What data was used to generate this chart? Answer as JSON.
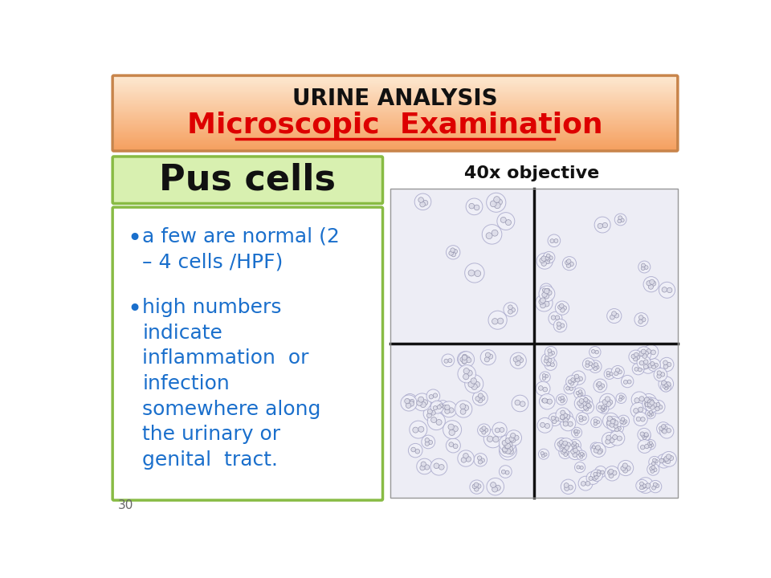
{
  "title_line1": "URINE ANALYSIS",
  "title_line2": "Microscopic  Examination",
  "title_border_color": "#c8844a",
  "subtitle": "Pus cells",
  "subtitle_bg": "#d8f0b0",
  "subtitle_border": "#88bb44",
  "bullet_color": "#1a6fcc",
  "bullet1": "a few are normal (2\n– 4 cells /HPF)",
  "bullet2": "high numbers\nindicate\ninflammation  or\ninfection\nsomewhere along\nthe urinary or\ngenital  tract.",
  "text_box_border": "#88bb44",
  "obj_label": "40x objective",
  "page_num": "30",
  "bg_color": "#ffffff",
  "img_bg": "#eeeef5",
  "header_gradient_top": "#fde8d0",
  "header_gradient_bottom": "#f5a060"
}
